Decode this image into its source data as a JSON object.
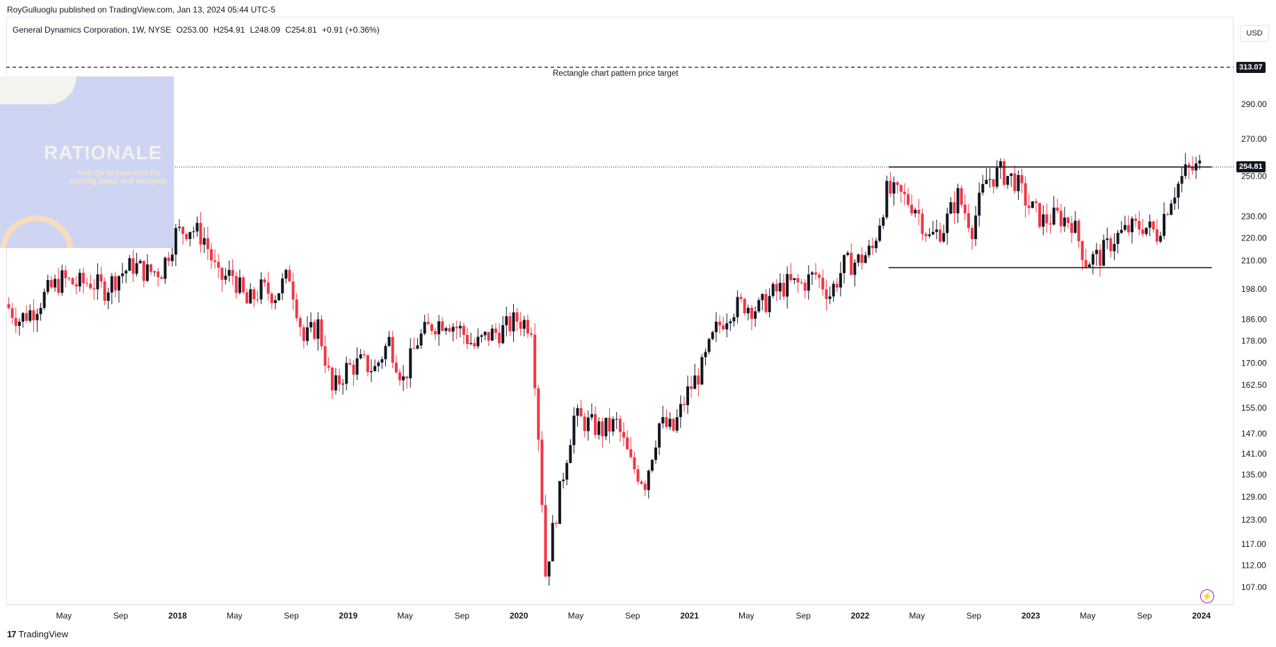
{
  "header": {
    "published_by": "RoyGulluoglu published on TradingView.com, Jan 13, 2024 05:44 UTC-5"
  },
  "legend": {
    "symbol": "General Dynamics Corporation, 1W, NYSE",
    "open": "O253.00",
    "high": "H254.91",
    "low": "L248.09",
    "close": "C254.81",
    "change": "+0.91 (+0.36%)"
  },
  "currency": "USD",
  "overlay": {
    "title": "RATIONALE",
    "subtitle": "Your go-to resource for trading ideas and analysis"
  },
  "footer": {
    "brand": "TradingView",
    "logo": "17"
  },
  "icons": {
    "bolt": "lightning-icon"
  },
  "colors": {
    "up": "#131722",
    "down": "#f23645",
    "accent": "#9c27b0"
  },
  "chart_data": {
    "type": "candlestick",
    "interval": "1W",
    "y_scale": "log",
    "y_ticks": [
      107,
      112,
      117,
      123,
      129,
      135,
      141,
      147,
      155,
      162.5,
      170,
      178,
      186,
      198,
      210,
      220,
      230,
      250,
      270,
      290
    ],
    "y_tick_labels": [
      "107.00",
      "112.00",
      "117.00",
      "123.00",
      "129.00",
      "135.00",
      "141.00",
      "147.00",
      "155.00",
      "162.50",
      "170.00",
      "178.00",
      "186.00",
      "198.00",
      "210.00",
      "220.00",
      "230.00",
      "250.00",
      "270.00",
      "290.00"
    ],
    "x_ticks": [
      {
        "label": "May",
        "date": "2017-05"
      },
      {
        "label": "Sep",
        "date": "2017-09"
      },
      {
        "label": "2018",
        "date": "2018-01"
      },
      {
        "label": "May",
        "date": "2018-05"
      },
      {
        "label": "Sep",
        "date": "2018-09"
      },
      {
        "label": "2019",
        "date": "2019-01"
      },
      {
        "label": "May",
        "date": "2019-05"
      },
      {
        "label": "Sep",
        "date": "2019-09"
      },
      {
        "label": "2020",
        "date": "2020-01"
      },
      {
        "label": "May",
        "date": "2020-05"
      },
      {
        "label": "Sep",
        "date": "2020-09"
      },
      {
        "label": "2021",
        "date": "2021-01"
      },
      {
        "label": "May",
        "date": "2021-05"
      },
      {
        "label": "Sep",
        "date": "2021-09"
      },
      {
        "label": "2022",
        "date": "2022-01"
      },
      {
        "label": "May",
        "date": "2022-05"
      },
      {
        "label": "Sep",
        "date": "2022-09"
      },
      {
        "label": "2023",
        "date": "2023-01"
      },
      {
        "label": "May",
        "date": "2023-05"
      },
      {
        "label": "Sep",
        "date": "2023-09"
      },
      {
        "label": "2024",
        "date": "2024-01"
      }
    ],
    "price_path": [
      [
        "2017-01",
        192
      ],
      [
        "2017-02",
        186
      ],
      [
        "2017-03",
        190
      ],
      [
        "2017-04",
        197
      ],
      [
        "2017-05",
        202
      ],
      [
        "2017-06",
        200
      ],
      [
        "2017-07",
        201
      ],
      [
        "2017-08",
        198
      ],
      [
        "2017-09",
        204
      ],
      [
        "2017-10",
        208
      ],
      [
        "2017-11",
        205
      ],
      [
        "2017-12",
        206
      ],
      [
        "2018-01",
        222
      ],
      [
        "2018-02",
        225
      ],
      [
        "2018-03",
        220
      ],
      [
        "2018-04",
        202
      ],
      [
        "2018-05",
        204
      ],
      [
        "2018-06",
        192
      ],
      [
        "2018-07",
        198
      ],
      [
        "2018-08",
        196
      ],
      [
        "2018-09",
        204
      ],
      [
        "2018-10",
        178
      ],
      [
        "2018-11",
        184
      ],
      [
        "2018-12",
        160
      ],
      [
        "2019-01",
        168
      ],
      [
        "2019-02",
        170
      ],
      [
        "2019-03",
        168
      ],
      [
        "2019-04",
        178
      ],
      [
        "2019-05",
        164
      ],
      [
        "2019-06",
        178
      ],
      [
        "2019-07",
        184
      ],
      [
        "2019-08",
        186
      ],
      [
        "2019-09",
        182
      ],
      [
        "2019-10",
        176
      ],
      [
        "2019-11",
        180
      ],
      [
        "2019-12",
        182
      ],
      [
        "2020-01",
        186
      ],
      [
        "2020-02",
        184
      ],
      [
        "2020-03",
        110
      ],
      [
        "2020-04",
        130
      ],
      [
        "2020-05",
        152
      ],
      [
        "2020-06",
        150
      ],
      [
        "2020-07",
        148
      ],
      [
        "2020-08",
        150
      ],
      [
        "2020-09",
        138
      ],
      [
        "2020-10",
        133
      ],
      [
        "2020-11",
        150
      ],
      [
        "2020-12",
        148
      ],
      [
        "2021-01",
        160
      ],
      [
        "2021-02",
        168
      ],
      [
        "2021-03",
        182
      ],
      [
        "2021-04",
        190
      ],
      [
        "2021-05",
        192
      ],
      [
        "2021-06",
        190
      ],
      [
        "2021-07",
        196
      ],
      [
        "2021-08",
        200
      ],
      [
        "2021-09",
        200
      ],
      [
        "2021-10",
        204
      ],
      [
        "2021-11",
        196
      ],
      [
        "2021-12",
        208
      ],
      [
        "2022-01",
        210
      ],
      [
        "2022-02",
        215
      ],
      [
        "2022-03",
        242
      ],
      [
        "2022-04",
        240
      ],
      [
        "2022-05",
        235
      ],
      [
        "2022-06",
        220
      ],
      [
        "2022-07",
        225
      ],
      [
        "2022-08",
        240
      ],
      [
        "2022-09",
        225
      ],
      [
        "2022-10",
        248
      ],
      [
        "2022-11",
        252
      ],
      [
        "2022-12",
        248
      ],
      [
        "2023-01",
        235
      ],
      [
        "2023-02",
        228
      ],
      [
        "2023-03",
        230
      ],
      [
        "2023-04",
        228
      ],
      [
        "2023-05",
        210
      ],
      [
        "2023-06",
        212
      ],
      [
        "2023-07",
        220
      ],
      [
        "2023-08",
        224
      ],
      [
        "2023-09",
        226
      ],
      [
        "2023-10",
        222
      ],
      [
        "2023-11",
        240
      ],
      [
        "2023-12",
        252
      ],
      [
        "2024-01",
        254.81
      ]
    ],
    "last": {
      "open": 253.0,
      "high": 254.91,
      "low": 248.09,
      "close": 254.81
    },
    "price_line": {
      "value": 254.81,
      "label": "254.81"
    },
    "target_line": {
      "value": 313.07,
      "label": "313.07",
      "annotation": "Rectangle chart pattern price target"
    },
    "rectangle": {
      "top": 254.81,
      "bottom": 207,
      "start": "2022-03",
      "end": "2024-01"
    }
  }
}
